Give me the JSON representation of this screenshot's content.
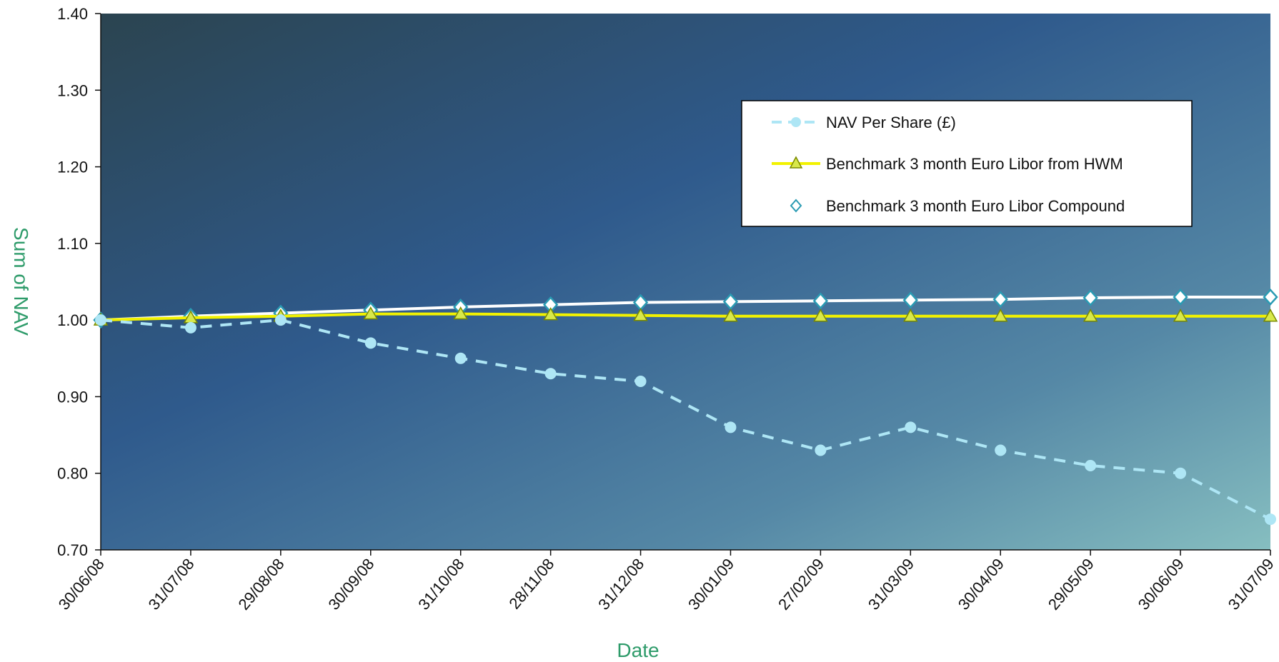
{
  "chart_data": {
    "type": "line",
    "title": "",
    "xlabel": "Date",
    "ylabel": "Sum of NAV",
    "ylim": [
      0.7,
      1.4
    ],
    "yticks": [
      "0.70",
      "0.80",
      "0.90",
      "1.00",
      "1.10",
      "1.20",
      "1.30",
      "1.40"
    ],
    "categories": [
      "30/06/08",
      "31/07/08",
      "29/08/08",
      "30/09/08",
      "31/10/08",
      "28/11/08",
      "31/12/08",
      "30/01/09",
      "27/02/09",
      "31/03/09",
      "30/04/09",
      "29/05/09",
      "30/06/09",
      "31/07/09"
    ],
    "series": [
      {
        "name": "NAV Per Share (£)",
        "values": [
          1.0,
          0.99,
          1.0,
          0.97,
          0.95,
          0.93,
          0.92,
          0.86,
          0.83,
          0.86,
          0.83,
          0.81,
          0.8,
          0.74
        ],
        "color": "#aee6f5",
        "style": "dashed",
        "marker": "circle"
      },
      {
        "name": "Benchmark 3 month Euro Libor from HWM",
        "values": [
          1.0,
          1.003,
          1.005,
          1.008,
          1.008,
          1.007,
          1.006,
          1.005,
          1.005,
          1.005,
          1.005,
          1.005,
          1.005,
          1.005
        ],
        "color": "#f2f200",
        "style": "solid",
        "marker": "triangle"
      },
      {
        "name": "Benchmark 3 month Euro Libor Compound",
        "values": [
          1.0,
          1.005,
          1.009,
          1.013,
          1.017,
          1.02,
          1.023,
          1.024,
          1.025,
          1.026,
          1.027,
          1.029,
          1.03,
          1.03
        ],
        "color": "#ffffff",
        "marker_color": "#2a9bb3",
        "style": "solid",
        "marker": "diamond"
      }
    ],
    "grid": false,
    "legend_position": "top-right"
  }
}
